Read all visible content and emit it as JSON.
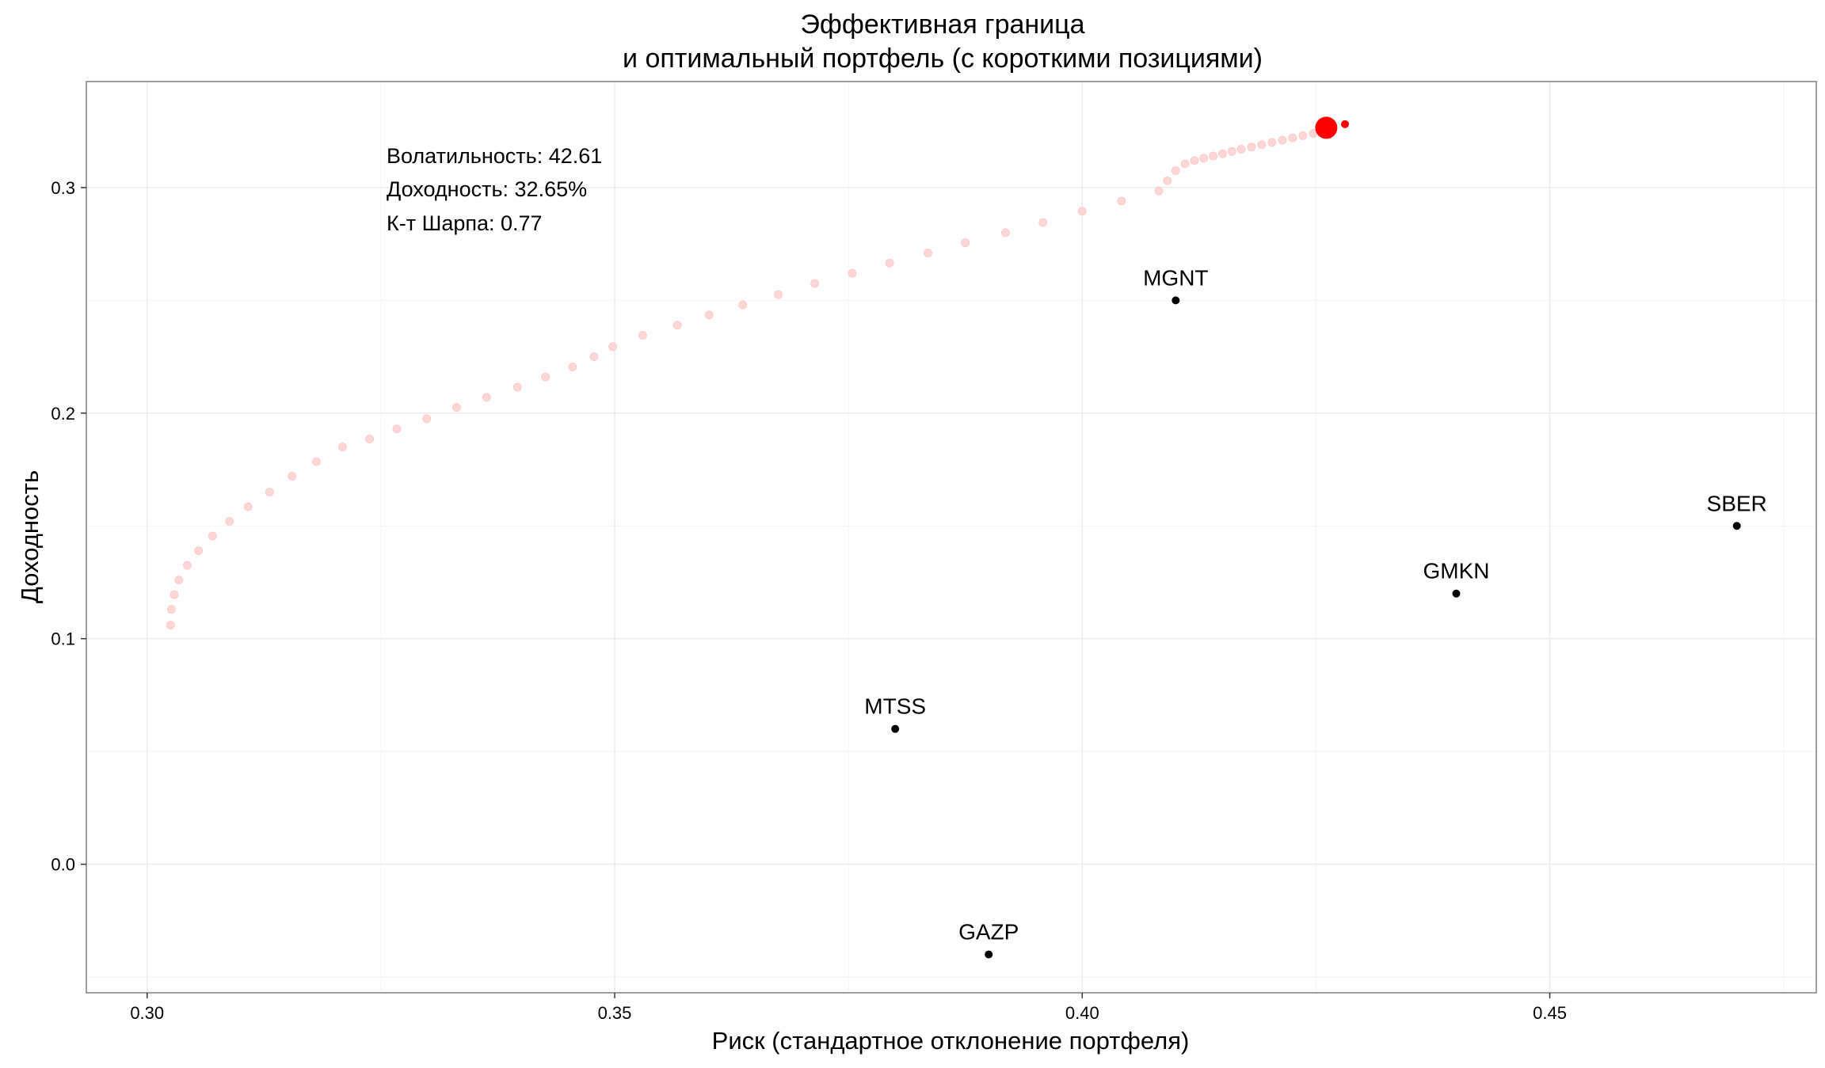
{
  "chart_data": {
    "type": "scatter",
    "title_lines": [
      "Эффективная граница",
      "и оптимальный портфель (с короткими позициями)"
    ],
    "xlabel": "Риск (стандартное отклонение портфеля)",
    "ylabel": "Доходность",
    "xlim": [
      0.2935,
      0.4785
    ],
    "ylim": [
      -0.057,
      0.347
    ],
    "x_ticks": [
      0.3,
      0.35,
      0.4,
      0.45
    ],
    "x_tick_labels": [
      "0.30",
      "0.35",
      "0.40",
      "0.45"
    ],
    "y_ticks": [
      0.0,
      0.1,
      0.2,
      0.3
    ],
    "y_tick_labels": [
      "0.0",
      "0.1",
      "0.2",
      "0.3"
    ],
    "grid": true,
    "colors": {
      "frontier": "#ffd6d6",
      "optimal": "#ff0000",
      "assets": "#000000",
      "grid": "#ebebeb",
      "panel_border": "#7f7f7f"
    },
    "annotations": [
      "Волатильность: 42.61",
      "Доходность: 32.65%",
      "К-т Шарпа: 0.77"
    ],
    "frontier": {
      "x": [
        0.3025,
        0.3026,
        0.3029,
        0.3034,
        0.3043,
        0.3055,
        0.307,
        0.3088,
        0.3108,
        0.3131,
        0.3155,
        0.3181,
        0.3209,
        0.3238,
        0.3267,
        0.3299,
        0.3331,
        0.3363,
        0.3396,
        0.3426,
        0.3455,
        0.3478,
        0.3498,
        0.353,
        0.3567,
        0.3601,
        0.3637,
        0.3675,
        0.3714,
        0.3754,
        0.3794,
        0.3835,
        0.3875,
        0.3918,
        0.3958,
        0.4,
        0.4042,
        0.4082,
        0.4091,
        0.41,
        0.411,
        0.412,
        0.413,
        0.414,
        0.415,
        0.416,
        0.417,
        0.4181,
        0.4192,
        0.4203,
        0.4214,
        0.4225,
        0.4236,
        0.4247,
        0.4255
      ],
      "y": [
        0.106,
        0.113,
        0.1195,
        0.126,
        0.1325,
        0.139,
        0.1455,
        0.152,
        0.1585,
        0.165,
        0.172,
        0.1785,
        0.185,
        0.1885,
        0.193,
        0.1975,
        0.2025,
        0.207,
        0.2115,
        0.216,
        0.2205,
        0.225,
        0.2295,
        0.2345,
        0.239,
        0.2435,
        0.248,
        0.2525,
        0.2575,
        0.262,
        0.2665,
        0.271,
        0.2755,
        0.28,
        0.2845,
        0.2895,
        0.294,
        0.2985,
        0.303,
        0.3075,
        0.3105,
        0.312,
        0.313,
        0.314,
        0.315,
        0.316,
        0.317,
        0.318,
        0.319,
        0.32,
        0.321,
        0.322,
        0.323,
        0.324,
        0.325
      ]
    },
    "optimal": {
      "x": 0.4261,
      "y": 0.3265
    },
    "optimal_neighbor": {
      "x": 0.4281,
      "y": 0.3281
    },
    "assets": [
      {
        "name": "MGNT",
        "x": 0.41,
        "y": 0.25
      },
      {
        "name": "SBER",
        "x": 0.47,
        "y": 0.15
      },
      {
        "name": "GMKN",
        "x": 0.44,
        "y": 0.12
      },
      {
        "name": "MTSS",
        "x": 0.38,
        "y": 0.06
      },
      {
        "name": "GAZP",
        "x": 0.39,
        "y": -0.04
      }
    ]
  }
}
